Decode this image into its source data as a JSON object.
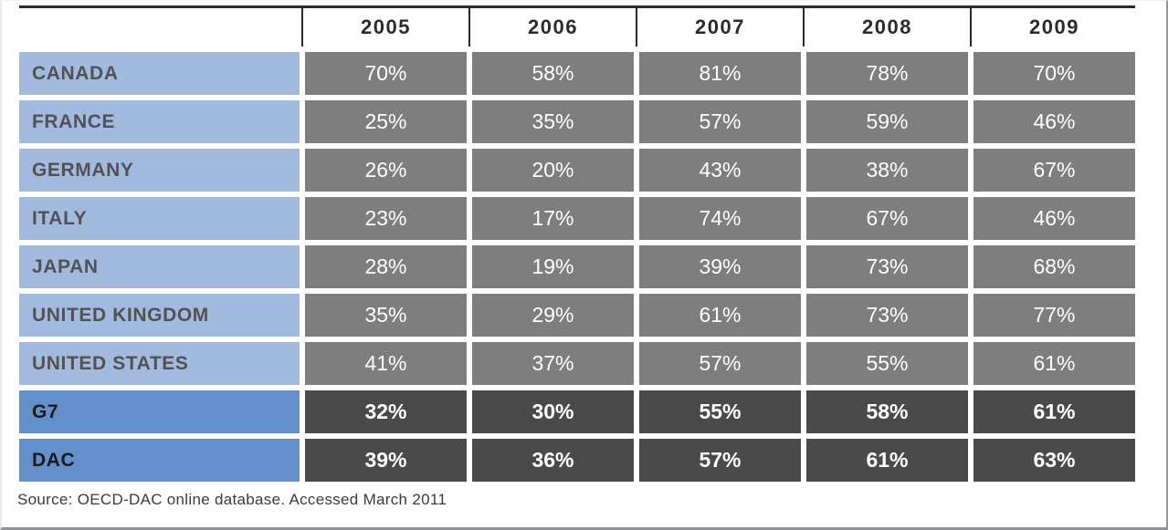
{
  "table": {
    "columns": [
      "2005",
      "2006",
      "2007",
      "2008",
      "2009"
    ],
    "rows": [
      {
        "label": "CANADA",
        "values": [
          "70%",
          "58%",
          "81%",
          "78%",
          "70%"
        ],
        "emphasis": false
      },
      {
        "label": "FRANCE",
        "values": [
          "25%",
          "35%",
          "57%",
          "59%",
          "46%"
        ],
        "emphasis": false
      },
      {
        "label": "GERMANY",
        "values": [
          "26%",
          "20%",
          "43%",
          "38%",
          "67%"
        ],
        "emphasis": false
      },
      {
        "label": "ITALY",
        "values": [
          "23%",
          "17%",
          "74%",
          "67%",
          "46%"
        ],
        "emphasis": false
      },
      {
        "label": "JAPAN",
        "values": [
          "28%",
          "19%",
          "39%",
          "73%",
          "68%"
        ],
        "emphasis": false
      },
      {
        "label": "UNITED KINGDOM",
        "values": [
          "35%",
          "29%",
          "61%",
          "73%",
          "77%"
        ],
        "emphasis": false
      },
      {
        "label": "UNITED STATES",
        "values": [
          "41%",
          "37%",
          "57%",
          "55%",
          "61%"
        ],
        "emphasis": false
      },
      {
        "label": "G7",
        "values": [
          "32%",
          "30%",
          "55%",
          "58%",
          "61%"
        ],
        "emphasis": true
      },
      {
        "label": "DAC",
        "values": [
          "39%",
          "36%",
          "57%",
          "61%",
          "63%"
        ],
        "emphasis": true
      }
    ]
  },
  "source_note": "Source: OECD-DAC online database. Accessed March 2011",
  "colors": {
    "label_blue": "#a3badf",
    "total_blue": "#6390cb",
    "cell_gray": "#7e7e7e",
    "total_gray": "#4a4a4a",
    "header_line": "#2a2a2a",
    "header_text": "#2b2b2e",
    "frame_edge": "#8f9296"
  },
  "chart_data": {
    "type": "table",
    "title": "",
    "categories": [
      "2005",
      "2006",
      "2007",
      "2008",
      "2009"
    ],
    "unit": "%",
    "series": [
      {
        "name": "CANADA",
        "values": [
          70,
          58,
          81,
          78,
          70
        ]
      },
      {
        "name": "FRANCE",
        "values": [
          25,
          35,
          57,
          59,
          46
        ]
      },
      {
        "name": "GERMANY",
        "values": [
          26,
          20,
          43,
          38,
          67
        ]
      },
      {
        "name": "ITALY",
        "values": [
          23,
          17,
          74,
          67,
          46
        ]
      },
      {
        "name": "JAPAN",
        "values": [
          28,
          19,
          39,
          73,
          68
        ]
      },
      {
        "name": "UNITED KINGDOM",
        "values": [
          35,
          29,
          61,
          73,
          77
        ]
      },
      {
        "name": "UNITED STATES",
        "values": [
          41,
          37,
          57,
          55,
          61
        ]
      },
      {
        "name": "G7",
        "values": [
          32,
          30,
          55,
          58,
          61
        ]
      },
      {
        "name": "DAC",
        "values": [
          39,
          36,
          57,
          61,
          63
        ]
      }
    ],
    "source": "Source: OECD-DAC online database. Accessed March 2011"
  }
}
